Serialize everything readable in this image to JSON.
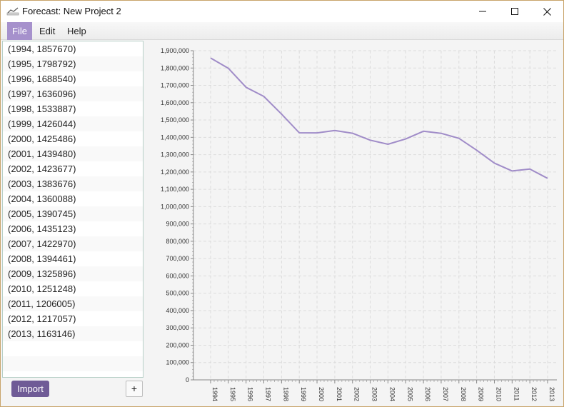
{
  "window": {
    "title": "Forecast: New Project 2",
    "minimize_glyph": "─",
    "maximize_glyph": "☐",
    "close_glyph": "✕",
    "app_icon": "chart-app-icon"
  },
  "menu": {
    "file": "File",
    "edit": "Edit",
    "help": "Help"
  },
  "list": {
    "items": [
      "(1994, 1857670)",
      "(1995, 1798792)",
      "(1996, 1688540)",
      "(1997, 1636096)",
      "(1998, 1533887)",
      "(1999, 1426044)",
      "(2000, 1425486)",
      "(2001, 1439480)",
      "(2002, 1423677)",
      "(2003, 1383676)",
      "(2004, 1360088)",
      "(2005, 1390745)",
      "(2006, 1435123)",
      "(2007, 1422970)",
      "(2008, 1394461)",
      "(2009, 1325896)",
      "(2010, 1251248)",
      "(2011, 1206005)",
      "(2012, 1217057)",
      "(2013, 1163146)"
    ]
  },
  "buttons": {
    "import_label": "Import",
    "add_label": "+"
  },
  "colors": {
    "accent": "#a691cc",
    "import_button": "#6f5b96",
    "series_line": "#a08cc8",
    "grid": "#dcdcdc"
  },
  "chart_data": {
    "type": "line",
    "x": [
      "1994",
      "1995",
      "1996",
      "1997",
      "1998",
      "1999",
      "2000",
      "2001",
      "2002",
      "2003",
      "2004",
      "2005",
      "2006",
      "2007",
      "2008",
      "2009",
      "2010",
      "2011",
      "2012",
      "2013"
    ],
    "series": [
      {
        "values": [
          1857670,
          1798792,
          1688540,
          1636096,
          1533887,
          1426044,
          1425486,
          1439480,
          1423677,
          1383676,
          1360088,
          1390745,
          1435123,
          1422970,
          1394461,
          1325896,
          1251248,
          1206005,
          1217057,
          1163146
        ]
      }
    ],
    "yticks": [
      0,
      100000,
      200000,
      300000,
      400000,
      500000,
      600000,
      700000,
      800000,
      900000,
      1000000,
      1100000,
      1200000,
      1300000,
      1400000,
      1500000,
      1600000,
      1700000,
      1800000,
      1900000
    ],
    "ytick_labels": [
      "0",
      "100,000",
      "200,000",
      "300,000",
      "400,000",
      "500,000",
      "600,000",
      "700,000",
      "800,000",
      "900,000",
      "1,000,000",
      "1,100,000",
      "1,200,000",
      "1,300,000",
      "1,400,000",
      "1,500,000",
      "1,600,000",
      "1,700,000",
      "1,800,000",
      "1,900,000"
    ],
    "ylim": [
      0,
      1900000
    ],
    "grid": true,
    "legend": false,
    "title": "",
    "xlabel": "",
    "ylabel": ""
  }
}
